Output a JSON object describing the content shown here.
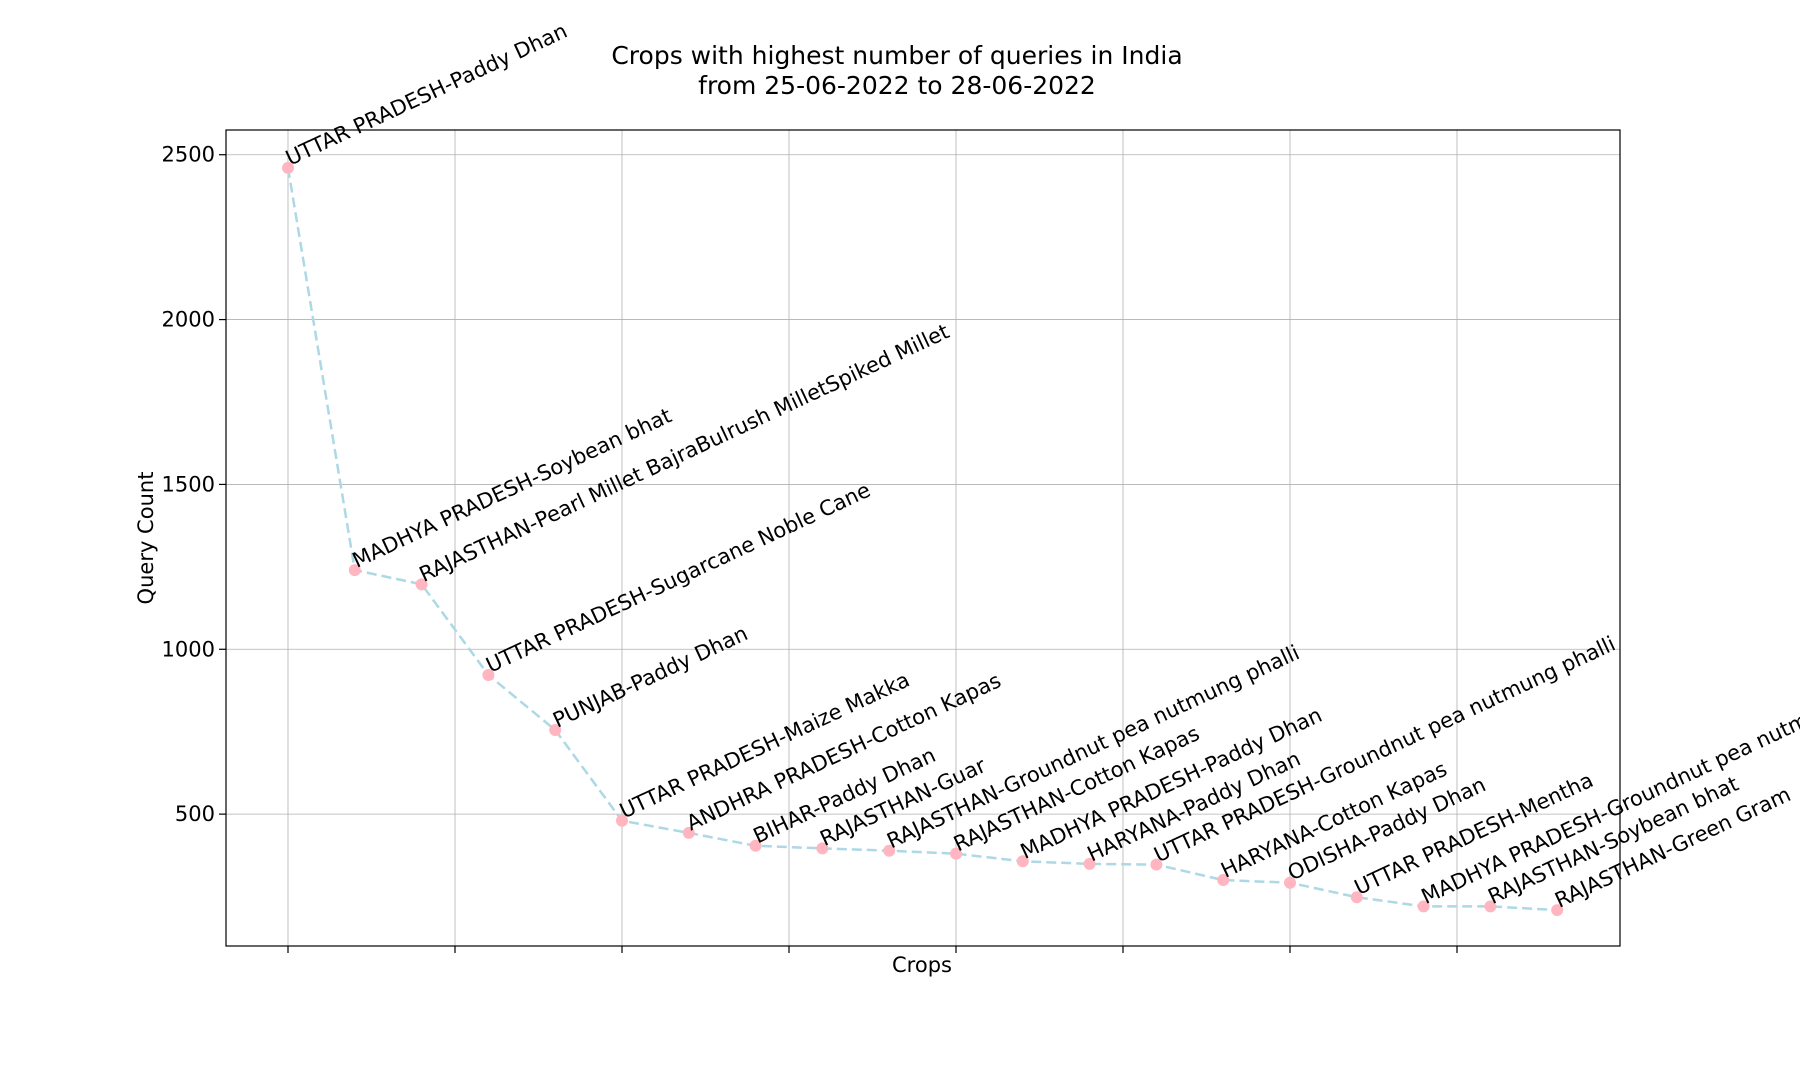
{
  "chart_data": {
    "type": "line",
    "title": "Crops with highest number of queries in India",
    "subtitle": "from 25-06-2022 to 28-06-2022",
    "xlabel": "Crops",
    "ylabel": "Query Count",
    "ylim": [
      100,
      2575
    ],
    "yticks": [
      500,
      1000,
      1500,
      2000,
      2500
    ],
    "grid": true,
    "line_style": "dashed",
    "colors": {
      "line": "#add8e6",
      "marker": "#ffb6c1"
    },
    "categories": [
      "UTTAR PRADESH-Paddy Dhan",
      "MADHYA PRADESH-Soybean bhat",
      "RAJASTHAN-Pearl Millet BajraBulrush MilletSpiked Millet",
      "UTTAR PRADESH-Sugarcane Noble Cane",
      "PUNJAB-Paddy Dhan",
      "UTTAR PRADESH-Maize Makka",
      "ANDHRA PRADESH-Cotton Kapas",
      "BIHAR-Paddy Dhan",
      "RAJASTHAN-Guar",
      "RAJASTHAN-Groundnut pea nutmung phalli",
      "RAJASTHAN-Cotton Kapas",
      "MADHYA PRADESH-Paddy Dhan",
      "HARYANA-Paddy Dhan",
      "UTTAR PRADESH-Groundnut pea nutmung phalli",
      "HARYANA-Cotton Kapas",
      "ODISHA-Paddy Dhan",
      "UTTAR PRADESH-Mentha",
      "MADHYA PRADESH-Groundnut pea nutmung phalli",
      "RAJASTHAN-Soybean bhat",
      "RAJASTHAN-Green Gram"
    ],
    "values": [
      2460,
      1240,
      1197,
      922,
      755,
      480,
      443,
      404,
      396,
      389,
      380,
      357,
      349,
      347,
      300,
      292,
      248,
      220,
      220,
      209
    ]
  }
}
